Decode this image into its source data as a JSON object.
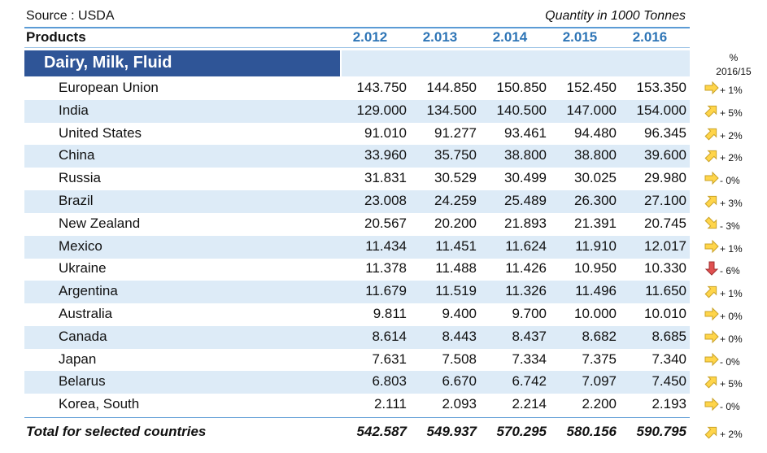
{
  "header": {
    "source": "Source : USDA",
    "unit": "Quantity in 1000 Tonnes"
  },
  "table": {
    "columns": [
      "Products",
      "2.012",
      "2.013",
      "2.014",
      "2.015",
      "2.016"
    ],
    "section": "Dairy, Milk, Fluid",
    "change_header": [
      "%",
      "2016/15"
    ],
    "rows": [
      [
        "European Union",
        "143.750",
        "144.850",
        "150.850",
        "152.450",
        "153.350",
        "+ 1%"
      ],
      [
        "India",
        "129.000",
        "134.500",
        "140.500",
        "147.000",
        "154.000",
        "+ 5%"
      ],
      [
        "United States",
        "91.010",
        "91.277",
        "93.461",
        "94.480",
        "96.345",
        "+ 2%"
      ],
      [
        "China",
        "33.960",
        "35.750",
        "38.800",
        "38.800",
        "39.600",
        "+ 2%"
      ],
      [
        "Russia",
        "31.831",
        "30.529",
        "30.499",
        "30.025",
        "29.980",
        "- 0%"
      ],
      [
        "Brazil",
        "23.008",
        "24.259",
        "25.489",
        "26.300",
        "27.100",
        "+ 3%"
      ],
      [
        "New Zealand",
        "20.567",
        "20.200",
        "21.893",
        "21.391",
        "20.745",
        "- 3%"
      ],
      [
        "Mexico",
        "11.434",
        "11.451",
        "11.624",
        "11.910",
        "12.017",
        "+ 1%"
      ],
      [
        "Ukraine",
        "11.378",
        "11.488",
        "11.426",
        "10.950",
        "10.330",
        "- 6%"
      ],
      [
        "Argentina",
        "11.679",
        "11.519",
        "11.326",
        "11.496",
        "11.650",
        "+ 1%"
      ],
      [
        "Australia",
        "9.811",
        "9.400",
        "9.700",
        "10.000",
        "10.010",
        "+ 0%"
      ],
      [
        "Canada",
        "8.614",
        "8.443",
        "8.437",
        "8.682",
        "8.685",
        "+ 0%"
      ],
      [
        "Japan",
        "7.631",
        "7.508",
        "7.334",
        "7.375",
        "7.340",
        "- 0%"
      ],
      [
        "Belarus",
        "6.803",
        "6.670",
        "6.742",
        "7.097",
        "7.450",
        "+ 5%"
      ],
      [
        "Korea, South",
        "2.111",
        "2.093",
        "2.214",
        "2.200",
        "2.193",
        "- 0%"
      ]
    ],
    "total": [
      "Total for selected countries",
      "542.587",
      "549.937",
      "570.295",
      "580.156",
      "590.795",
      "+ 2%"
    ]
  }
}
